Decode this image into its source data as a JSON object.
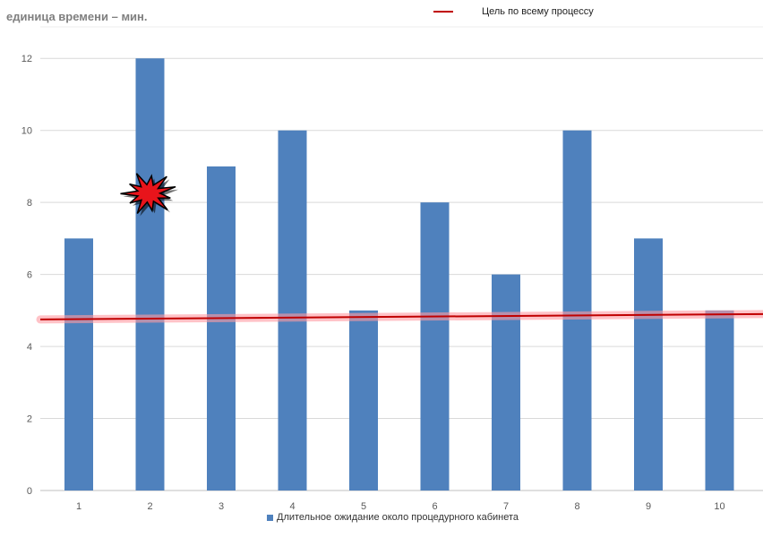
{
  "header": {
    "unit_note": "единица времени – мин.",
    "target_legend": "Цель по всему процессу"
  },
  "colors": {
    "bar": "#4f81bd",
    "target_line": "#c00000",
    "target_glow": "#ff9aa2",
    "grid": "#d9d9d9",
    "burst": "#e8141b"
  },
  "icons": {
    "burst": "explosion-burst-icon"
  },
  "chart_data": {
    "type": "bar",
    "categories": [
      "1",
      "2",
      "3",
      "4",
      "5",
      "6",
      "7",
      "8",
      "9",
      "10"
    ],
    "series": [
      {
        "name": "Длительное ожидание около процедурного кабинета",
        "values": [
          7,
          12,
          9,
          10,
          5,
          8,
          6,
          10,
          7,
          5
        ]
      }
    ],
    "target_line": {
      "name": "Цель по всему процессу",
      "start": 4.75,
      "end": 4.9
    },
    "ylim": [
      0,
      13
    ],
    "yticks": [
      0,
      2,
      4,
      6,
      8,
      10,
      12
    ],
    "xlabel": "",
    "ylabel": "",
    "grid": true,
    "legend_position": "bottom"
  }
}
